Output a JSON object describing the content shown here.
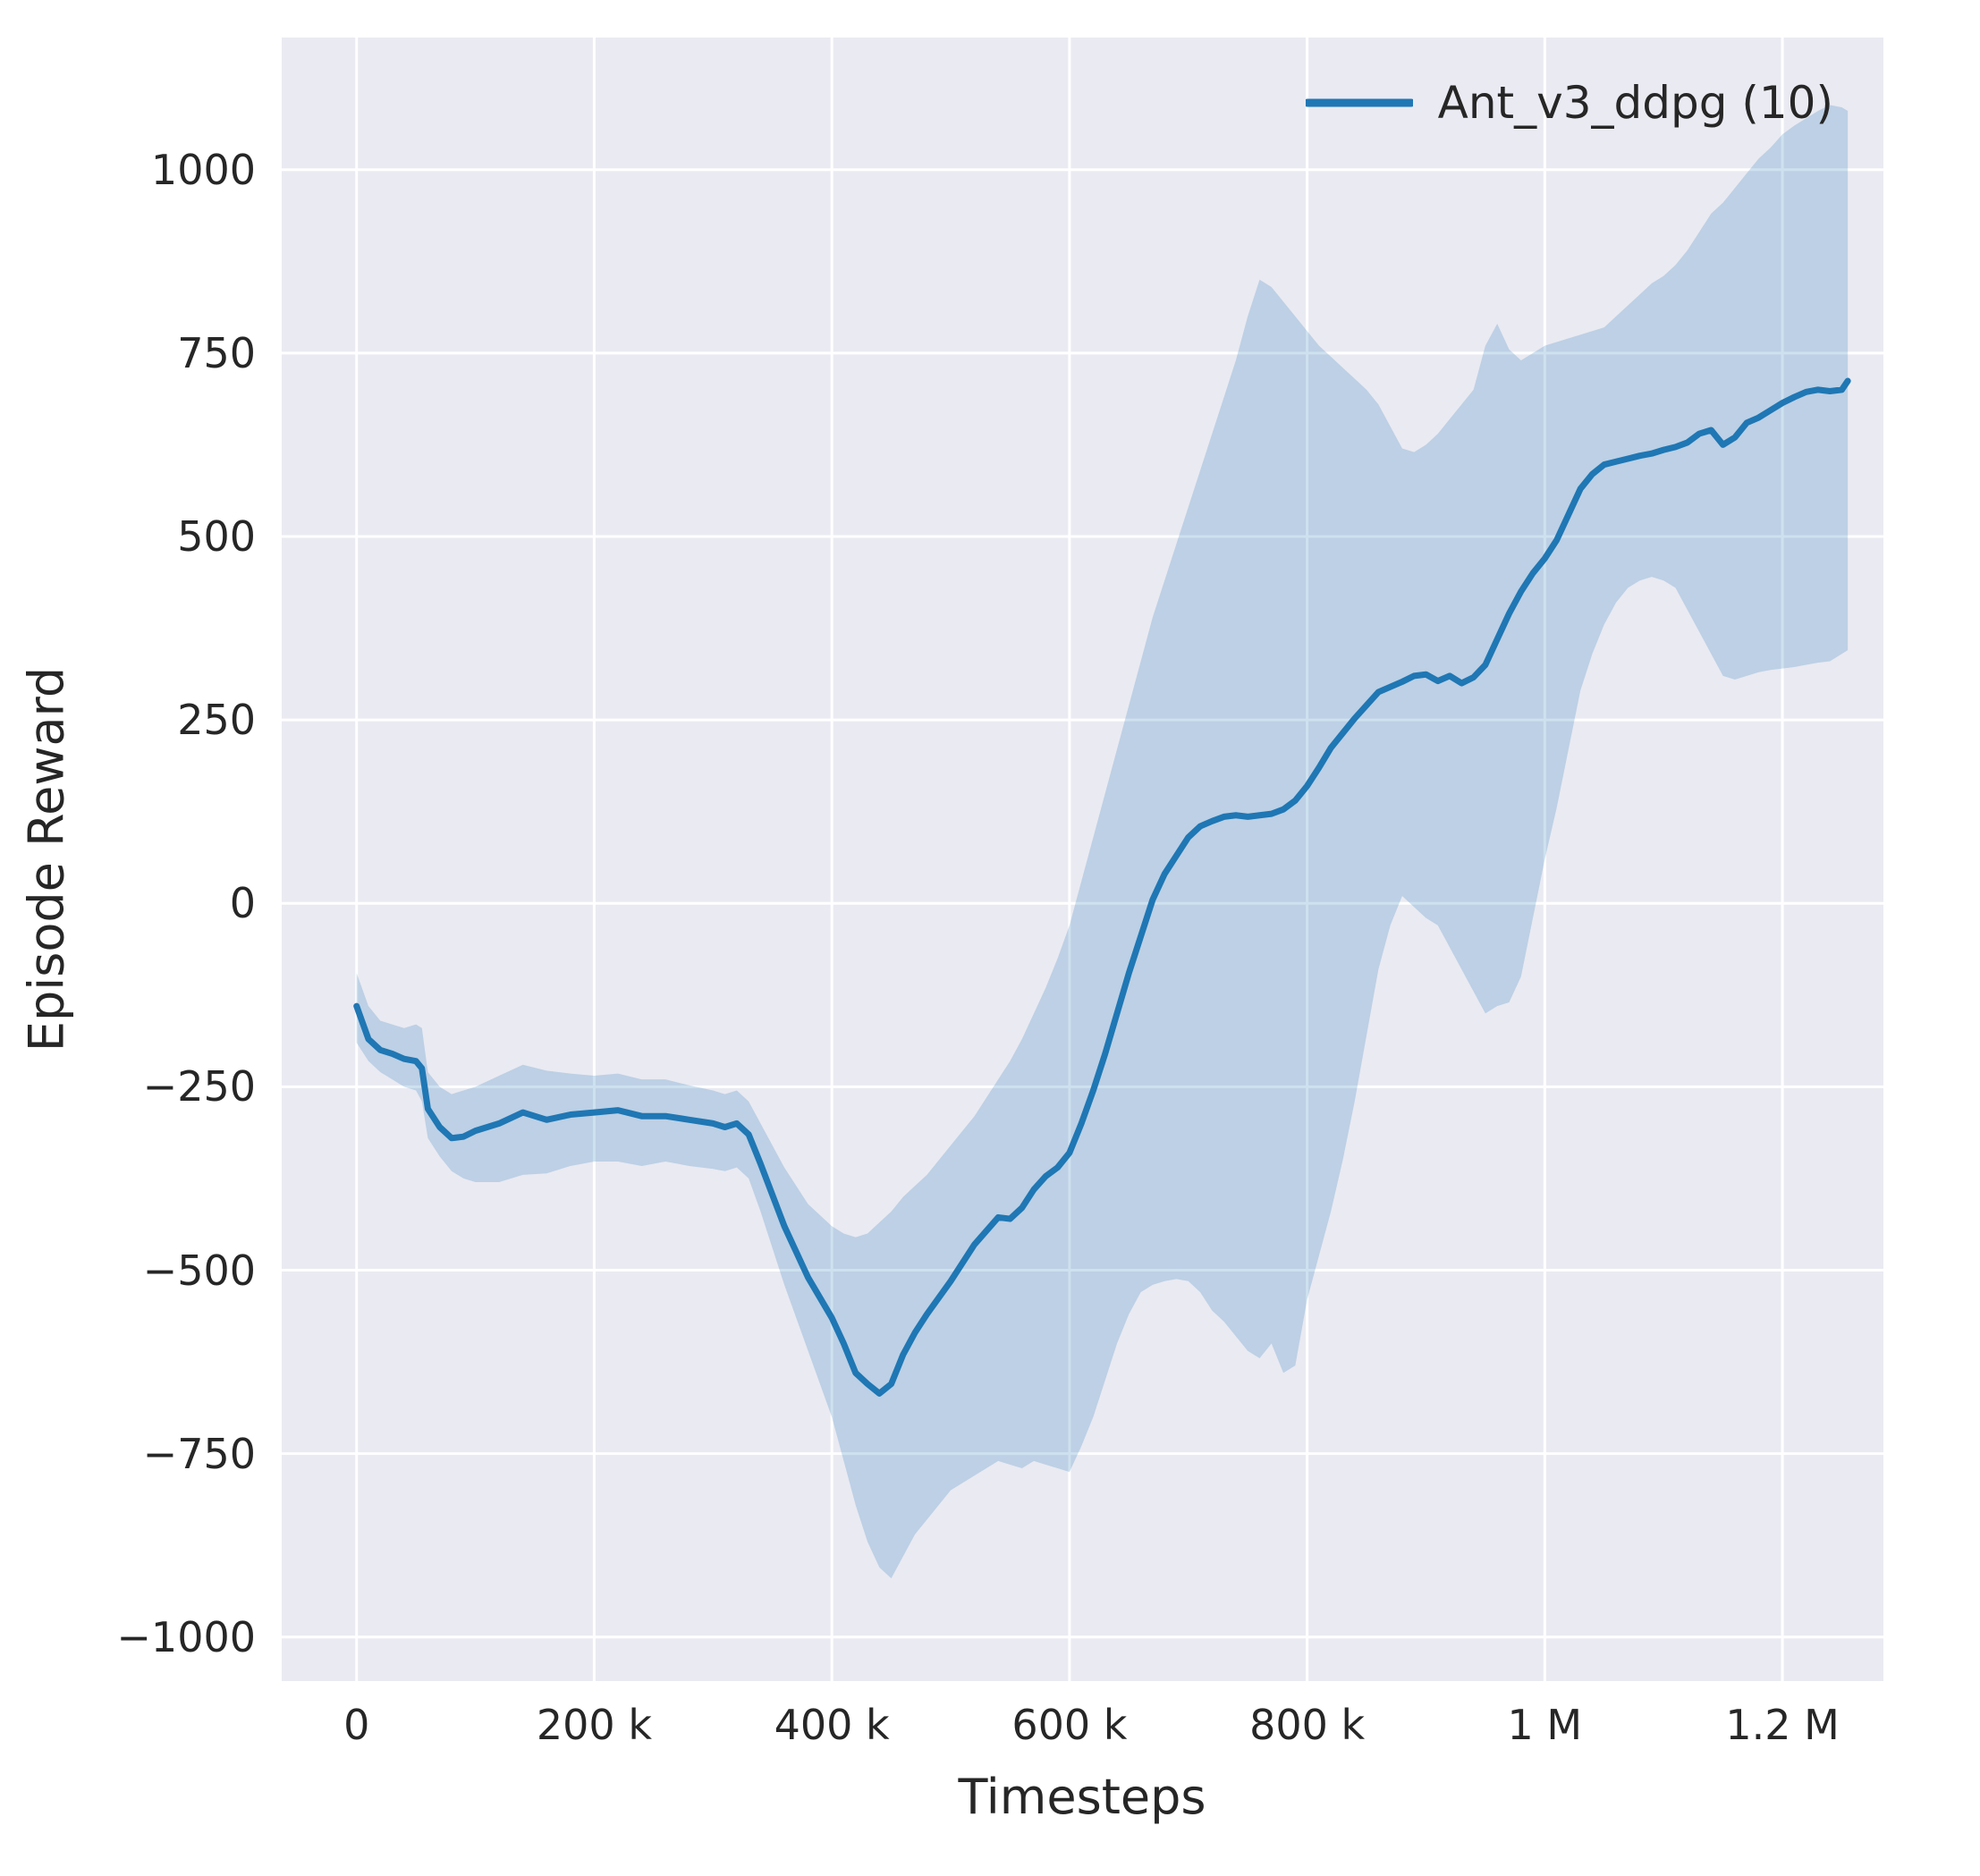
{
  "chart_data": {
    "type": "line",
    "title": "",
    "xlabel": "Timesteps",
    "ylabel": "Episode Reward",
    "xlim": [
      -63000,
      1285000
    ],
    "ylim": [
      -1060,
      1180
    ],
    "grid": true,
    "plot_background": "#eaeaf2",
    "gridline_color": "#ffffff",
    "legend_position": "upper right",
    "xticks": {
      "values": [
        0,
        200000,
        400000,
        600000,
        800000,
        1000000,
        1200000
      ],
      "labels": [
        "0",
        "200 k",
        "400 k",
        "600 k",
        "800 k",
        "1 M",
        "1.2 M"
      ]
    },
    "yticks": {
      "values": [
        -1000,
        -750,
        -500,
        -250,
        0,
        250,
        500,
        750,
        1000
      ],
      "labels": [
        "−1000",
        "−750",
        "−500",
        "−250",
        "0",
        "250",
        "500",
        "750",
        "1000"
      ]
    },
    "point_format": [
      "timestep",
      "mean",
      "band_lower",
      "band_upper"
    ],
    "series": [
      {
        "name": "Ant_v3_ddpg (10)",
        "color": "#1f77b4",
        "band_opacity": 0.22,
        "points": [
          [
            0,
            -140,
            -190,
            -95
          ],
          [
            10000,
            -185,
            -215,
            -140
          ],
          [
            20000,
            -200,
            -230,
            -160
          ],
          [
            30000,
            -205,
            -240,
            -165
          ],
          [
            40000,
            -212,
            -250,
            -170
          ],
          [
            50000,
            -215,
            -255,
            -165
          ],
          [
            55000,
            -225,
            -270,
            -170
          ],
          [
            60000,
            -280,
            -320,
            -230
          ],
          [
            70000,
            -305,
            -345,
            -250
          ],
          [
            80000,
            -320,
            -365,
            -260
          ],
          [
            90000,
            -318,
            -375,
            -255
          ],
          [
            100000,
            -310,
            -380,
            -250
          ],
          [
            120000,
            -300,
            -380,
            -235
          ],
          [
            140000,
            -285,
            -370,
            -220
          ],
          [
            160000,
            -295,
            -368,
            -228
          ],
          [
            180000,
            -288,
            -358,
            -232
          ],
          [
            200000,
            -285,
            -352,
            -235
          ],
          [
            220000,
            -282,
            -352,
            -232
          ],
          [
            240000,
            -290,
            -358,
            -240
          ],
          [
            260000,
            -290,
            -352,
            -240
          ],
          [
            280000,
            -295,
            -358,
            -248
          ],
          [
            300000,
            -300,
            -362,
            -255
          ],
          [
            310000,
            -305,
            -365,
            -260
          ],
          [
            320000,
            -300,
            -360,
            -255
          ],
          [
            330000,
            -315,
            -375,
            -270
          ],
          [
            340000,
            -355,
            -420,
            -300
          ],
          [
            360000,
            -440,
            -520,
            -360
          ],
          [
            380000,
            -510,
            -610,
            -410
          ],
          [
            400000,
            -565,
            -700,
            -440
          ],
          [
            410000,
            -600,
            -760,
            -450
          ],
          [
            420000,
            -640,
            -820,
            -455
          ],
          [
            430000,
            -655,
            -870,
            -450
          ],
          [
            440000,
            -668,
            -905,
            -435
          ],
          [
            450000,
            -655,
            -920,
            -420
          ],
          [
            460000,
            -615,
            -890,
            -400
          ],
          [
            470000,
            -585,
            -860,
            -385
          ],
          [
            480000,
            -560,
            -840,
            -370
          ],
          [
            500000,
            -515,
            -800,
            -330
          ],
          [
            520000,
            -465,
            -780,
            -290
          ],
          [
            540000,
            -428,
            -760,
            -240
          ],
          [
            550000,
            -430,
            -765,
            -215
          ],
          [
            560000,
            -415,
            -770,
            -185
          ],
          [
            570000,
            -390,
            -760,
            -150
          ],
          [
            580000,
            -372,
            -765,
            -115
          ],
          [
            590000,
            -360,
            -770,
            -75
          ],
          [
            600000,
            -340,
            -775,
            -30
          ],
          [
            610000,
            -300,
            -740,
            30
          ],
          [
            620000,
            -255,
            -700,
            90
          ],
          [
            630000,
            -205,
            -650,
            150
          ],
          [
            640000,
            -150,
            -600,
            210
          ],
          [
            650000,
            -95,
            -560,
            270
          ],
          [
            660000,
            -45,
            -530,
            330
          ],
          [
            670000,
            5,
            -520,
            390
          ],
          [
            680000,
            40,
            -515,
            440
          ],
          [
            690000,
            65,
            -512,
            490
          ],
          [
            700000,
            90,
            -515,
            540
          ],
          [
            710000,
            105,
            -530,
            590
          ],
          [
            720000,
            112,
            -555,
            640
          ],
          [
            730000,
            118,
            -570,
            690
          ],
          [
            740000,
            120,
            -590,
            740
          ],
          [
            750000,
            118,
            -610,
            800
          ],
          [
            760000,
            120,
            -620,
            850
          ],
          [
            770000,
            122,
            -600,
            840
          ],
          [
            780000,
            128,
            -640,
            820
          ],
          [
            790000,
            140,
            -630,
            800
          ],
          [
            800000,
            160,
            -540,
            780
          ],
          [
            810000,
            185,
            -480,
            760
          ],
          [
            820000,
            212,
            -420,
            745
          ],
          [
            830000,
            232,
            -350,
            730
          ],
          [
            840000,
            252,
            -270,
            715
          ],
          [
            850000,
            270,
            -180,
            700
          ],
          [
            860000,
            288,
            -90,
            680
          ],
          [
            870000,
            295,
            -30,
            650
          ],
          [
            880000,
            302,
            10,
            620
          ],
          [
            890000,
            310,
            -5,
            615
          ],
          [
            900000,
            312,
            -20,
            625
          ],
          [
            910000,
            303,
            -30,
            640
          ],
          [
            920000,
            310,
            -60,
            660
          ],
          [
            930000,
            300,
            -90,
            680
          ],
          [
            940000,
            308,
            -120,
            700
          ],
          [
            950000,
            325,
            -150,
            760
          ],
          [
            960000,
            360,
            -140,
            790
          ],
          [
            970000,
            395,
            -135,
            755
          ],
          [
            980000,
            425,
            -100,
            740
          ],
          [
            990000,
            450,
            -20,
            750
          ],
          [
            1000000,
            470,
            60,
            760
          ],
          [
            1010000,
            495,
            130,
            765
          ],
          [
            1020000,
            530,
            210,
            770
          ],
          [
            1030000,
            565,
            290,
            775
          ],
          [
            1040000,
            585,
            340,
            780
          ],
          [
            1050000,
            598,
            380,
            785
          ],
          [
            1060000,
            602,
            410,
            800
          ],
          [
            1070000,
            606,
            430,
            815
          ],
          [
            1080000,
            610,
            440,
            830
          ],
          [
            1090000,
            613,
            445,
            845
          ],
          [
            1100000,
            618,
            440,
            855
          ],
          [
            1110000,
            622,
            430,
            870
          ],
          [
            1120000,
            628,
            400,
            890
          ],
          [
            1130000,
            640,
            370,
            915
          ],
          [
            1140000,
            645,
            340,
            940
          ],
          [
            1150000,
            625,
            310,
            955
          ],
          [
            1160000,
            635,
            305,
            975
          ],
          [
            1170000,
            655,
            310,
            995
          ],
          [
            1180000,
            662,
            315,
            1015
          ],
          [
            1190000,
            672,
            318,
            1030
          ],
          [
            1200000,
            682,
            320,
            1048
          ],
          [
            1210000,
            690,
            322,
            1060
          ],
          [
            1220000,
            697,
            325,
            1070
          ],
          [
            1230000,
            700,
            328,
            1080
          ],
          [
            1240000,
            698,
            330,
            1088
          ],
          [
            1250000,
            700,
            340,
            1085
          ],
          [
            1255000,
            712,
            345,
            1080
          ]
        ]
      }
    ]
  },
  "legend": {
    "label": "Ant_v3_ddpg (10)"
  }
}
